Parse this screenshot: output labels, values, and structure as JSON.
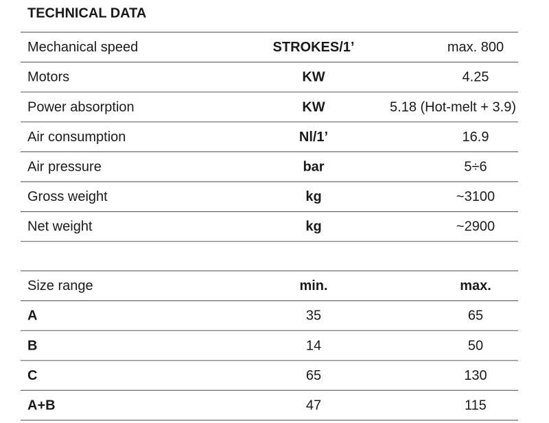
{
  "title": "TECHNICAL DATA",
  "specs": {
    "rows": [
      [
        "Mechanical speed",
        "STROKES/1’",
        "max. 800"
      ],
      [
        "Motors",
        "KW",
        4.25
      ],
      [
        "Power absorption",
        "KW",
        "5.18 (Hot-melt + 3.9)"
      ],
      [
        "Air consumption",
        "Nl/1’",
        16.9
      ],
      [
        "Air pressure",
        "bar",
        "5÷6"
      ],
      [
        "Gross weight",
        "kg",
        "~3100"
      ],
      [
        "Net weight",
        "kg",
        "~2900"
      ]
    ]
  },
  "sizes": {
    "header": [
      "Size range",
      "min.",
      "max."
    ],
    "rows": [
      [
        "A",
        35,
        65
      ],
      [
        "B",
        14,
        50
      ],
      [
        "C",
        65,
        130
      ],
      [
        "A+B",
        47,
        115
      ]
    ]
  }
}
